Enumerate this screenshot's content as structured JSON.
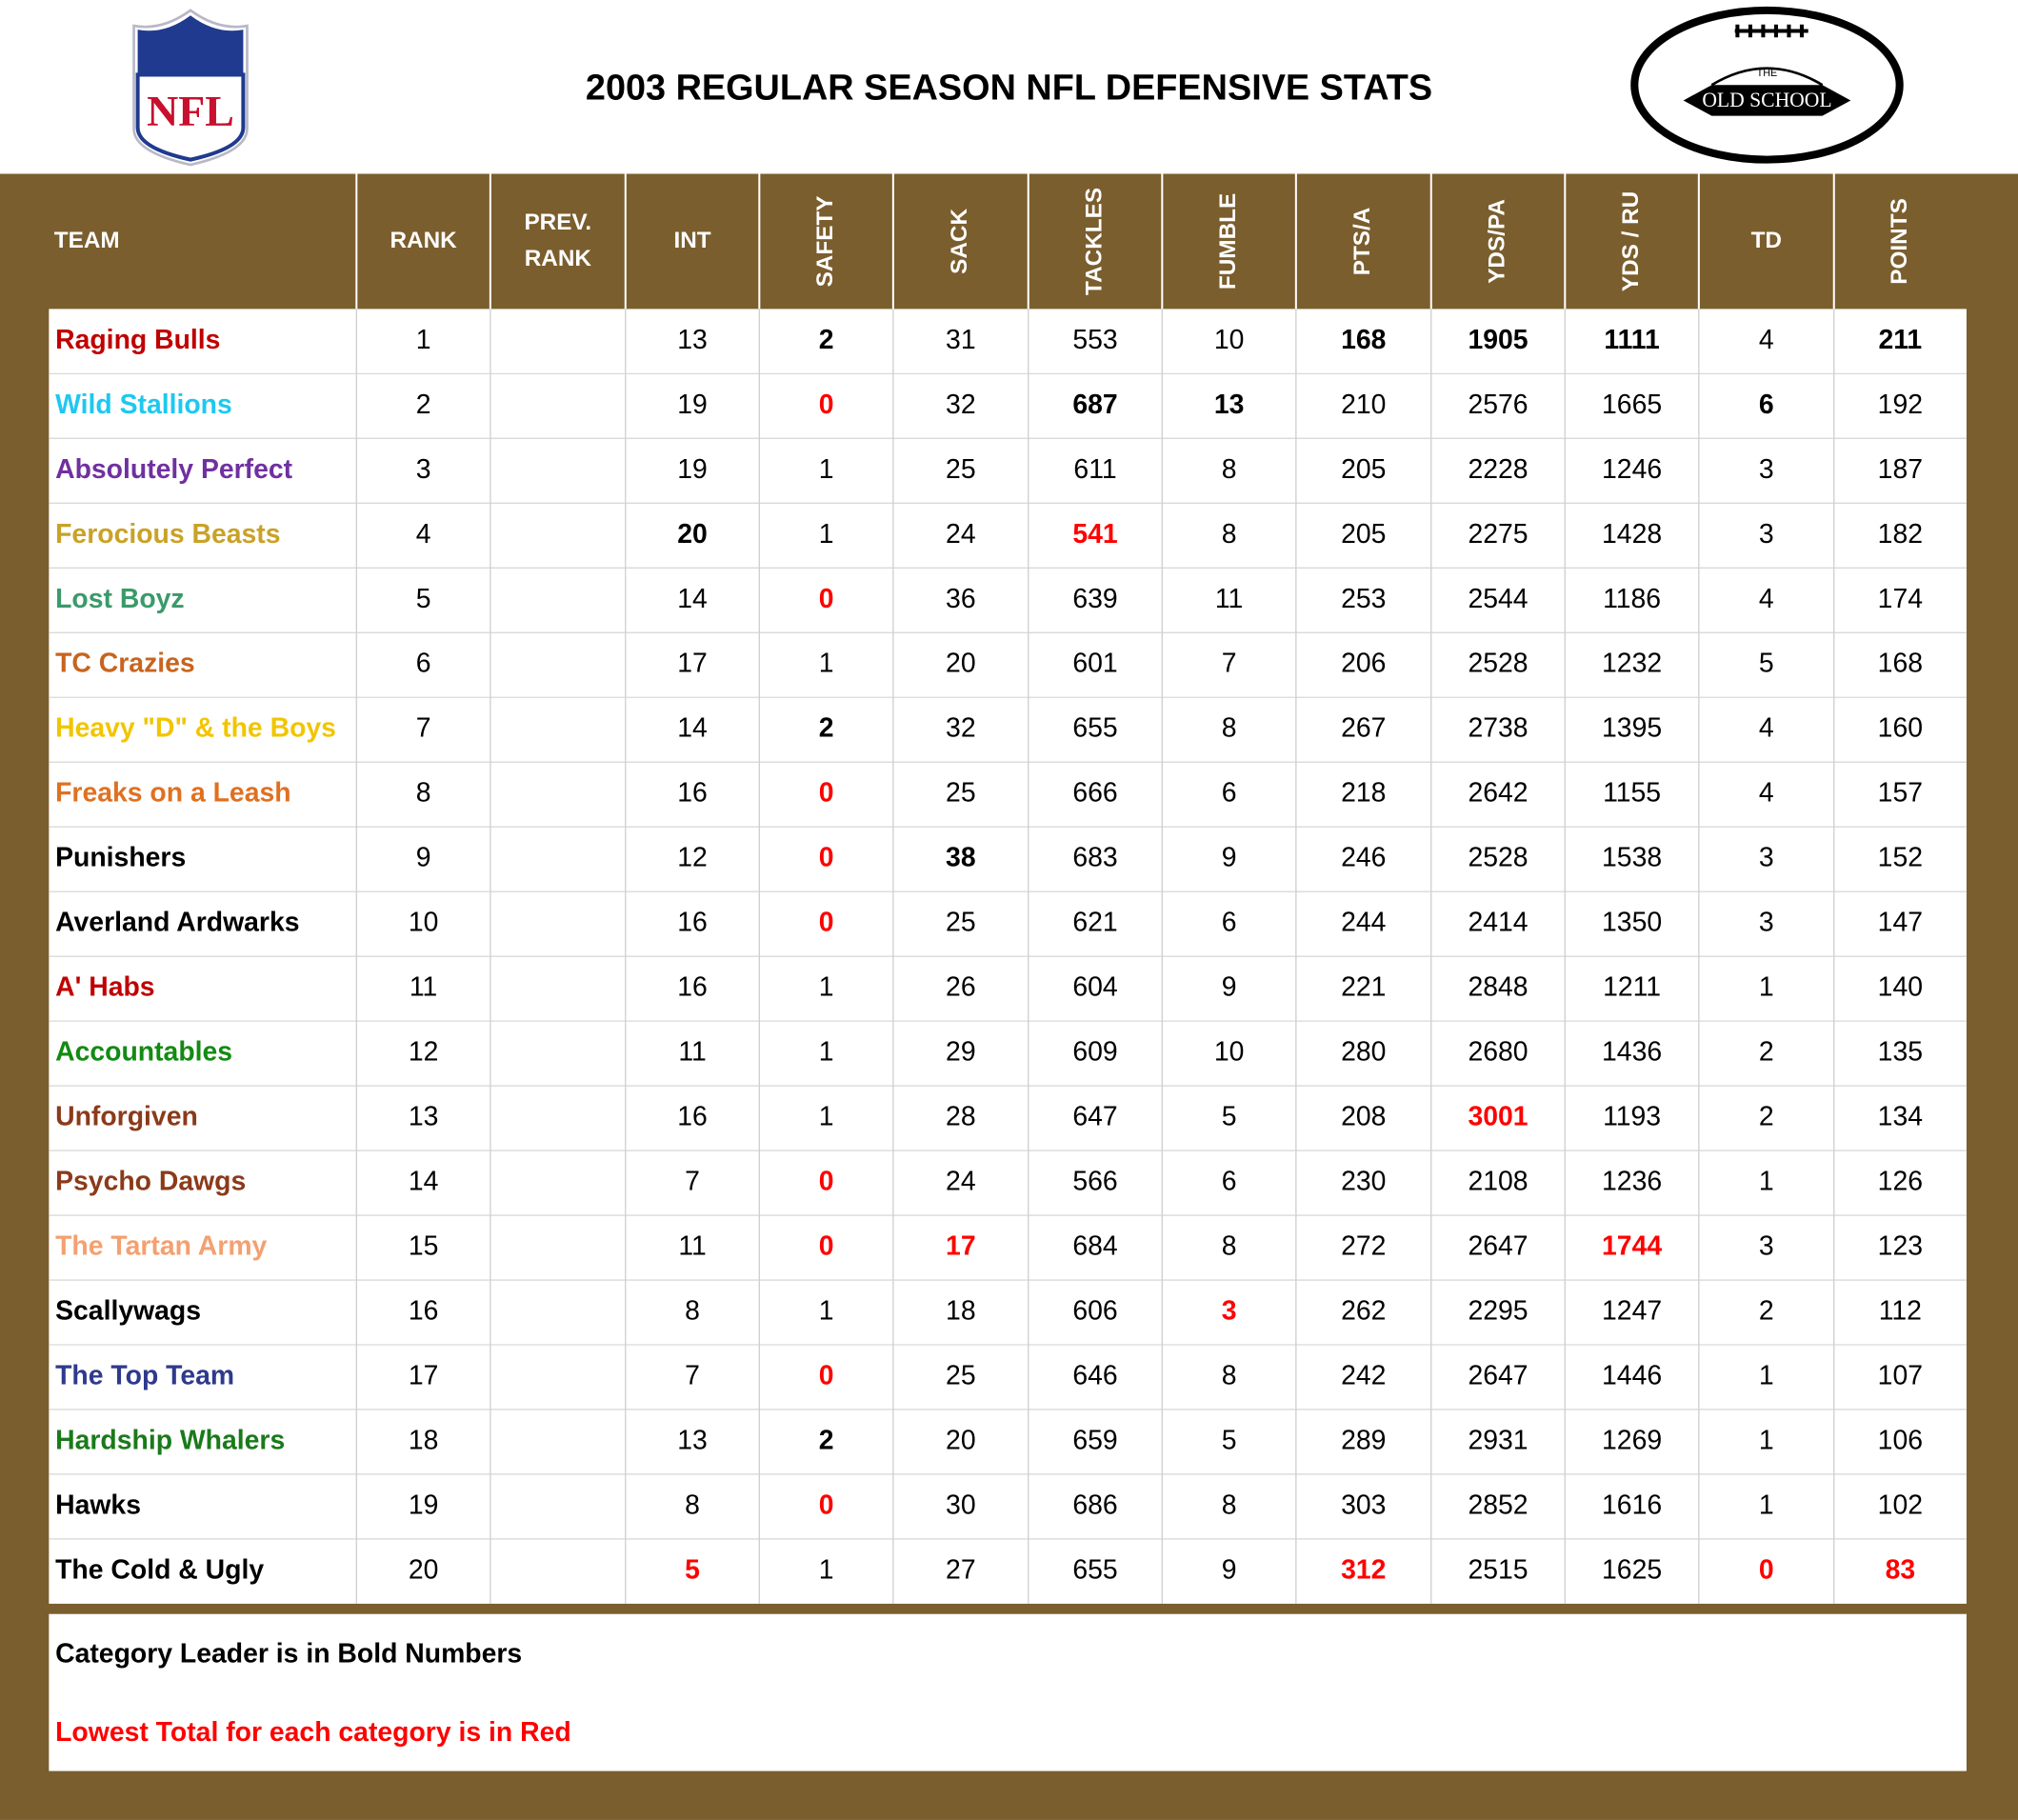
{
  "header": {
    "title": "2003 REGULAR SEASON NFL DEFENSIVE STATS",
    "left_logo": "NFL",
    "right_logo_small": "THE",
    "right_logo": "OLD SCHOOL"
  },
  "table": {
    "columns": [
      {
        "label": "TEAM",
        "rotated": false,
        "best": null
      },
      {
        "label": "RANK",
        "rotated": false,
        "best": null
      },
      {
        "label": [
          "PREV.",
          "RANK"
        ],
        "rotated": false,
        "best": null
      },
      {
        "label": "INT",
        "rotated": false,
        "best": "max"
      },
      {
        "label": "SAFETY",
        "rotated": true,
        "best": "max"
      },
      {
        "label": "SACK",
        "rotated": true,
        "best": "max"
      },
      {
        "label": "TACKLES",
        "rotated": true,
        "best": "max"
      },
      {
        "label": "FUMBLE",
        "rotated": true,
        "best": "max"
      },
      {
        "label": "PTS/A",
        "rotated": true,
        "best": "min"
      },
      {
        "label": "YDS/PA",
        "rotated": true,
        "best": "min"
      },
      {
        "label": "YDS / RU",
        "rotated": true,
        "best": "min"
      },
      {
        "label": "TD",
        "rotated": false,
        "best": "max"
      },
      {
        "label": "POINTS",
        "rotated": true,
        "best": "max"
      }
    ],
    "rows": [
      {
        "team": "Raging Bulls",
        "color": "#c00000",
        "rank": 1,
        "stats": [
          13,
          2,
          31,
          553,
          10,
          168,
          1905,
          1111,
          4,
          211
        ]
      },
      {
        "team": "Wild Stallions",
        "color": "#1ec8f0",
        "rank": 2,
        "stats": [
          19,
          0,
          32,
          687,
          13,
          210,
          2576,
          1665,
          6,
          192
        ]
      },
      {
        "team": "Absolutely Perfect",
        "color": "#7030a0",
        "rank": 3,
        "stats": [
          19,
          1,
          25,
          611,
          8,
          205,
          2228,
          1246,
          3,
          187
        ]
      },
      {
        "team": "Ferocious Beasts",
        "color": "#c9a227",
        "rank": 4,
        "stats": [
          20,
          1,
          24,
          541,
          8,
          205,
          2275,
          1428,
          3,
          182
        ]
      },
      {
        "team": "Lost Boyz",
        "color": "#3a9a6a",
        "rank": 5,
        "stats": [
          14,
          0,
          36,
          639,
          11,
          253,
          2544,
          1186,
          4,
          174
        ]
      },
      {
        "team": "TC Crazies",
        "color": "#c8641e",
        "rank": 6,
        "stats": [
          17,
          1,
          20,
          601,
          7,
          206,
          2528,
          1232,
          5,
          168
        ]
      },
      {
        "team": "Heavy \"D\" & the Boys",
        "color": "#f2c500",
        "rank": 7,
        "stats": [
          14,
          2,
          32,
          655,
          8,
          267,
          2738,
          1395,
          4,
          160
        ]
      },
      {
        "team": "Freaks on a Leash",
        "color": "#e07020",
        "rank": 8,
        "stats": [
          16,
          0,
          25,
          666,
          6,
          218,
          2642,
          1155,
          4,
          157
        ]
      },
      {
        "team": "Punishers",
        "color": "#000000",
        "rank": 9,
        "stats": [
          12,
          0,
          38,
          683,
          9,
          246,
          2528,
          1538,
          3,
          152
        ]
      },
      {
        "team": "Averland Ardwarks",
        "color": "#000000",
        "rank": 10,
        "stats": [
          16,
          0,
          25,
          621,
          6,
          244,
          2414,
          1350,
          3,
          147
        ]
      },
      {
        "team": "A' Habs",
        "color": "#c00000",
        "rank": 11,
        "stats": [
          16,
          1,
          26,
          604,
          9,
          221,
          2848,
          1211,
          1,
          140
        ]
      },
      {
        "team": "Accountables",
        "color": "#138a13",
        "rank": 12,
        "stats": [
          11,
          1,
          29,
          609,
          10,
          280,
          2680,
          1436,
          2,
          135
        ]
      },
      {
        "team": "Unforgiven",
        "color": "#8b3a1a",
        "rank": 13,
        "stats": [
          16,
          1,
          28,
          647,
          5,
          208,
          3001,
          1193,
          2,
          134
        ]
      },
      {
        "team": "Psycho Dawgs",
        "color": "#8b3a1a",
        "rank": 14,
        "stats": [
          7,
          0,
          24,
          566,
          6,
          230,
          2108,
          1236,
          1,
          126
        ]
      },
      {
        "team": "The Tartan Army",
        "color": "#f4a070",
        "rank": 15,
        "stats": [
          11,
          0,
          17,
          684,
          8,
          272,
          2647,
          1744,
          3,
          123
        ]
      },
      {
        "team": "Scallywags",
        "color": "#000000",
        "rank": 16,
        "stats": [
          8,
          1,
          18,
          606,
          3,
          262,
          2295,
          1247,
          2,
          112
        ]
      },
      {
        "team": "The Top Team",
        "color": "#2e3a8c",
        "rank": 17,
        "stats": [
          7,
          0,
          25,
          646,
          8,
          242,
          2647,
          1446,
          1,
          107
        ]
      },
      {
        "team": "Hardship Whalers",
        "color": "#1a7a1a",
        "rank": 18,
        "stats": [
          13,
          2,
          20,
          659,
          5,
          289,
          2931,
          1269,
          1,
          106
        ]
      },
      {
        "team": "Hawks",
        "color": "#000000",
        "rank": 19,
        "stats": [
          8,
          0,
          30,
          686,
          8,
          303,
          2852,
          1616,
          1,
          102
        ]
      },
      {
        "team": "The Cold & Ugly",
        "color": "#000000",
        "rank": 20,
        "stats": [
          5,
          1,
          27,
          655,
          9,
          312,
          2515,
          1625,
          0,
          83
        ]
      }
    ]
  },
  "notes": [
    "Category Leader is in Bold Numbers",
    "Lowest Total for each category is in Red"
  ]
}
